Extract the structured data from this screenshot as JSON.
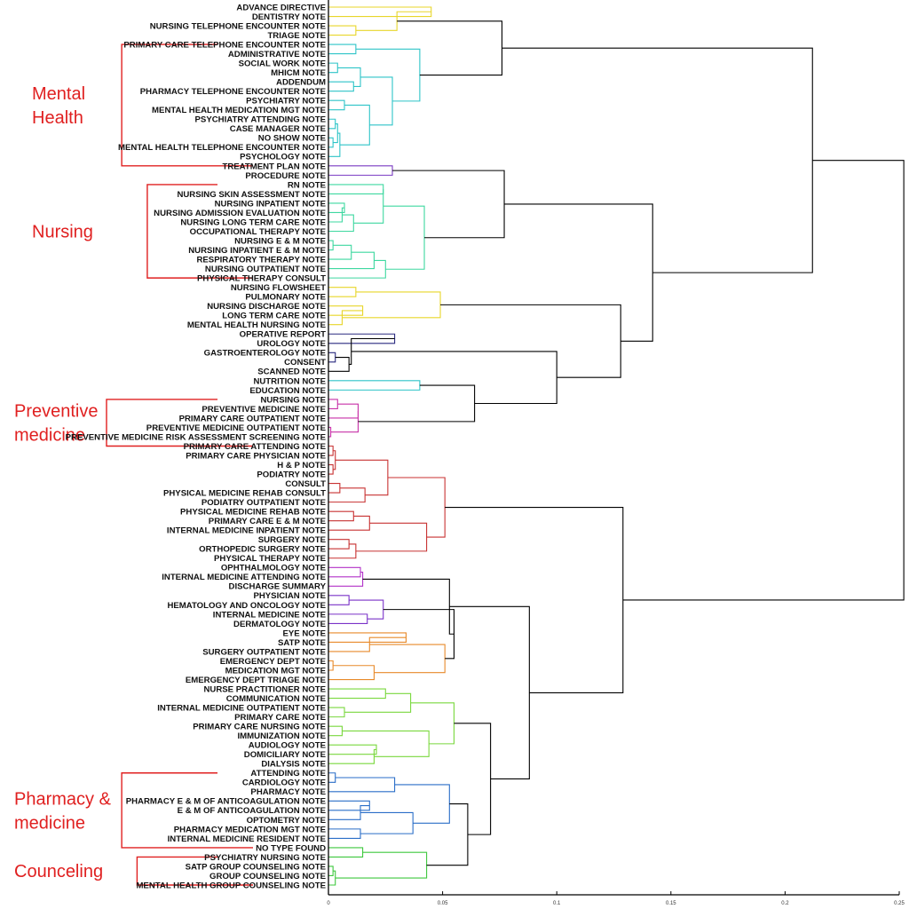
{
  "chart_data": {
    "type": "dendrogram",
    "orientation": "leaves-left, distance-right",
    "xlim": [
      0,
      0.25
    ],
    "xticks": [
      "0",
      "0.05",
      "0.1",
      "0.15",
      "0.2",
      "0.25"
    ],
    "leaves": [
      "ADVANCE DIRECTIVE",
      "DENTISTRY NOTE",
      "NURSING TELEPHONE ENCOUNTER NOTE",
      "TRIAGE NOTE",
      "PRIMARY CARE TELEPHONE ENCOUNTER NOTE",
      "ADMINISTRATIVE NOTE",
      "SOCIAL WORK NOTE",
      "MHICM NOTE",
      "ADDENDUM",
      "PHARMACY TELEPHONE ENCOUNTER NOTE",
      "PSYCHIATRY NOTE",
      "MENTAL HEALTH MEDICATION MGT NOTE",
      "PSYCHIATRY ATTENDING NOTE",
      "CASE MANAGER NOTE",
      "NO SHOW NOTE",
      "MENTAL HEALTH TELEPHONE ENCOUNTER NOTE",
      "PSYCHOLOGY NOTE",
      "TREATMENT PLAN NOTE",
      "PROCEDURE NOTE",
      "RN NOTE",
      "NURSING SKIN ASSESSMENT NOTE",
      "NURSING INPATIENT NOTE",
      "NURSING ADMISSION EVALUATION NOTE",
      "NURSING LONG TERM CARE NOTE",
      "OCCUPATIONAL THERAPY NOTE",
      "NURSING E & M NOTE",
      "NURSING INPATIENT E & M NOTE",
      "RESPIRATORY THERAPY NOTE",
      "NURSING OUTPATIENT NOTE",
      "PHYSICAL THERAPY CONSULT",
      "NURSING FLOWSHEET",
      "PULMONARY NOTE",
      "NURSING DISCHARGE NOTE",
      "LONG TERM CARE NOTE",
      "MENTAL HEALTH NURSING NOTE",
      "OPERATIVE REPORT",
      "UROLOGY NOTE",
      "GASTROENTEROLOGY NOTE",
      "CONSENT",
      "SCANNED NOTE",
      "NUTRITION NOTE",
      "EDUCATION NOTE",
      "NURSING NOTE",
      "PREVENTIVE MEDICINE NOTE",
      "PRIMARY CARE OUTPATIENT NOTE",
      "PREVENTIVE MEDICINE OUTPATIENT NOTE",
      "PREVENTIVE MEDICINE RISK ASSESSMENT SCREENING NOTE",
      "PRIMARY CARE ATTENDING NOTE",
      "PRIMARY CARE PHYSICIAN NOTE",
      "H & P NOTE",
      "PODIATRY NOTE",
      "CONSULT",
      "PHYSICAL MEDICINE REHAB CONSULT",
      "PODIATRY OUTPATIENT NOTE",
      "PHYSICAL MEDICINE REHAB NOTE",
      "PRIMARY CARE E & M NOTE",
      "INTERNAL MEDICINE INPATIENT NOTE",
      "SURGERY NOTE",
      "ORTHOPEDIC SURGERY NOTE",
      "PHYSICAL THERAPY NOTE",
      "OPHTHALMOLOGY NOTE",
      "INTERNAL MEDICINE ATTENDING NOTE",
      "DISCHARGE SUMMARY",
      "PHYSICIAN NOTE",
      "HEMATOLOGY AND ONCOLOGY NOTE",
      "INTERNAL MEDICINE NOTE",
      "DERMATOLOGY NOTE",
      "EYE NOTE",
      "SATP NOTE",
      "SURGERY OUTPATIENT NOTE",
      "EMERGENCY DEPT NOTE",
      "MEDICATION MGT NOTE",
      "EMERGENCY DEPT TRIAGE NOTE",
      "NURSE PRACTITIONER NOTE",
      "COMMUNICATION NOTE",
      "INTERNAL MEDICINE OUTPATIENT NOTE",
      "PRIMARY CARE NOTE",
      "PRIMARY CARE NURSING NOTE",
      "IMMUNIZATION NOTE",
      "AUDIOLOGY NOTE",
      "DOMICILIARY NOTE",
      "DIALYSIS NOTE",
      "ATTENDING NOTE",
      "CARDIOLOGY NOTE",
      "PHARMACY NOTE",
      "PHARMACY E & M OF ANTICOAGULATION NOTE",
      "E & M OF ANTICOAGULATION NOTE",
      "OPTOMETRY NOTE",
      "PHARMACY MEDICATION MGT NOTE",
      "INTERNAL MEDICINE RESIDENT NOTE",
      "NO TYPE FOUND",
      "PSYCHIATRY NURSING NOTE",
      "SATP GROUP COUNSELING NOTE",
      "GROUP COUNSELING NOTE",
      "MENTAL HEALTH GROUP COUNSELING NOTE"
    ],
    "clusters": [
      {
        "leaves": [
          0,
          3
        ],
        "color": "#e8d62a"
      },
      {
        "leaves": [
          4,
          16
        ],
        "color": "#2ec4c8"
      },
      {
        "leaves": [
          17,
          18
        ],
        "color": "#7a3bc2"
      },
      {
        "leaves": [
          19,
          29
        ],
        "color": "#3ed8a0"
      },
      {
        "leaves": [
          30,
          34
        ],
        "color": "#e8d62a"
      },
      {
        "leaves": [
          35,
          38
        ],
        "color": "#2a2a80"
      },
      {
        "leaves": [
          39,
          41
        ],
        "color": "#2ec4c8"
      },
      {
        "leaves": [
          42,
          46
        ],
        "color": "#c832a8"
      },
      {
        "leaves": [
          47,
          59
        ],
        "color": "#c83232"
      },
      {
        "leaves": [
          60,
          62
        ],
        "color": "#b232c8"
      },
      {
        "leaves": [
          63,
          66
        ],
        "color": "#7a32c8"
      },
      {
        "leaves": [
          67,
          72
        ],
        "color": "#e88a2a"
      },
      {
        "leaves": [
          73,
          81
        ],
        "color": "#7ad83e"
      },
      {
        "leaves": [
          82,
          89
        ],
        "color": "#2a6ec8"
      },
      {
        "leaves": [
          90,
          94
        ],
        "color": "#3ec83e"
      }
    ],
    "merges": [
      {
        "id": "y1",
        "c": [
          "L0",
          "L1"
        ],
        "h": 0.045
      },
      {
        "id": "y2",
        "c": [
          "L2",
          "L3"
        ],
        "h": 0.012
      },
      {
        "id": "y3",
        "c": [
          "y1",
          "y2"
        ],
        "h": 0.03
      },
      {
        "id": "c1",
        "c": [
          "L4",
          "L5"
        ],
        "h": 0.012
      },
      {
        "id": "c2",
        "c": [
          "L6",
          "L7"
        ],
        "h": 0.004
      },
      {
        "id": "c3",
        "c": [
          "L8",
          "L9"
        ],
        "h": 0.011
      },
      {
        "id": "c4",
        "c": [
          "c2",
          "c3"
        ],
        "h": 0.014
      },
      {
        "id": "c5",
        "c": [
          "L12",
          "L13"
        ],
        "h": 0.003
      },
      {
        "id": "c6",
        "c": [
          "L14",
          "L15"
        ],
        "h": 0.002
      },
      {
        "id": "c7",
        "c": [
          "c5",
          "c6"
        ],
        "h": 0.004
      },
      {
        "id": "c8",
        "c": [
          "c7",
          "L16"
        ],
        "h": 0.005
      },
      {
        "id": "c9",
        "c": [
          "L10",
          "L11"
        ],
        "h": 0.007
      },
      {
        "id": "c10",
        "c": [
          "c9",
          "c8"
        ],
        "h": 0.018
      },
      {
        "id": "c11",
        "c": [
          "c4",
          "c10"
        ],
        "h": 0.028
      },
      {
        "id": "c12",
        "c": [
          "c1",
          "c11"
        ],
        "h": 0.04
      },
      {
        "id": "A",
        "c": [
          "y3",
          "c12"
        ],
        "h": 0.076
      },
      {
        "id": "p1",
        "c": [
          "L17",
          "L18"
        ],
        "h": 0.028
      },
      {
        "id": "g1",
        "c": [
          "L19",
          "L20"
        ],
        "h": 0.024
      },
      {
        "id": "g2",
        "c": [
          "L21",
          "L22"
        ],
        "h": 0.007
      },
      {
        "id": "g3",
        "c": [
          "g2",
          "L23"
        ],
        "h": 0.006
      },
      {
        "id": "g4",
        "c": [
          "g3",
          "L24"
        ],
        "h": 0.011
      },
      {
        "id": "g5",
        "c": [
          "g1",
          "g4"
        ],
        "h": 0.024
      },
      {
        "id": "g6",
        "c": [
          "L25",
          "L26"
        ],
        "h": 0.002
      },
      {
        "id": "g7",
        "c": [
          "g6",
          "L27"
        ],
        "h": 0.01
      },
      {
        "id": "g8",
        "c": [
          "g7",
          "L28"
        ],
        "h": 0.02
      },
      {
        "id": "g9",
        "c": [
          "g8",
          "L29"
        ],
        "h": 0.025
      },
      {
        "id": "g10",
        "c": [
          "g5",
          "g9"
        ],
        "h": 0.042
      },
      {
        "id": "B",
        "c": [
          "p1",
          "g10"
        ],
        "h": 0.077
      },
      {
        "id": "y4",
        "c": [
          "L30",
          "L31"
        ],
        "h": 0.012
      },
      {
        "id": "y5",
        "c": [
          "L32",
          "L33"
        ],
        "h": 0.015
      },
      {
        "id": "y6",
        "c": [
          "y5",
          "L34"
        ],
        "h": 0.006
      },
      {
        "id": "y7",
        "c": [
          "y4",
          "y6"
        ],
        "h": 0.049
      },
      {
        "id": "n1",
        "c": [
          "L35",
          "L36"
        ],
        "h": 0.029
      },
      {
        "id": "n2",
        "c": [
          "L37",
          "L38"
        ],
        "h": 0.003
      },
      {
        "id": "n3",
        "c": [
          "n2",
          "L39"
        ],
        "h": 0.009
      },
      {
        "id": "n4",
        "c": [
          "n1",
          "n3"
        ],
        "h": 0.01
      },
      {
        "id": "t1",
        "c": [
          "L40",
          "L41"
        ],
        "h": 0.04
      },
      {
        "id": "m1",
        "c": [
          "L42",
          "L43"
        ],
        "h": 0.004
      },
      {
        "id": "m2",
        "c": [
          "m1",
          "L44"
        ],
        "h": 0.013
      },
      {
        "id": "m3",
        "c": [
          "L45",
          "L46"
        ],
        "h": 0.001
      },
      {
        "id": "m4",
        "c": [
          "m2",
          "m3"
        ],
        "h": 0.013
      },
      {
        "id": "x1",
        "c": [
          "t1",
          "m4"
        ],
        "h": 0.064
      },
      {
        "id": "x2",
        "c": [
          "n4",
          "x1"
        ],
        "h": 0.1
      },
      {
        "id": "x3",
        "c": [
          "y7",
          "x2"
        ],
        "h": 0.128
      },
      {
        "id": "C",
        "c": [
          "B",
          "x3"
        ],
        "h": 0.142
      },
      {
        "id": "D",
        "c": [
          "A",
          "C"
        ],
        "h": 0.212
      },
      {
        "id": "r1",
        "c": [
          "L47",
          "L48"
        ],
        "h": 0.002
      },
      {
        "id": "r2",
        "c": [
          "L49",
          "L50"
        ],
        "h": 0.002
      },
      {
        "id": "r3",
        "c": [
          "r1",
          "r2"
        ],
        "h": 0.003
      },
      {
        "id": "r4",
        "c": [
          "L51",
          "L52"
        ],
        "h": 0.005
      },
      {
        "id": "r5",
        "c": [
          "r4",
          "L53"
        ],
        "h": 0.016
      },
      {
        "id": "r6",
        "c": [
          "r3",
          "r5"
        ],
        "h": 0.026
      },
      {
        "id": "r7",
        "c": [
          "L54",
          "L55"
        ],
        "h": 0.011
      },
      {
        "id": "r8",
        "c": [
          "r7",
          "L56"
        ],
        "h": 0.018
      },
      {
        "id": "r9",
        "c": [
          "L57",
          "L58"
        ],
        "h": 0.009
      },
      {
        "id": "r10",
        "c": [
          "r9",
          "L59"
        ],
        "h": 0.012
      },
      {
        "id": "r11",
        "c": [
          "r8",
          "r10"
        ],
        "h": 0.043
      },
      {
        "id": "R",
        "c": [
          "r6",
          "r11"
        ],
        "h": 0.051
      },
      {
        "id": "p2",
        "c": [
          "L60",
          "L61"
        ],
        "h": 0.014
      },
      {
        "id": "p3",
        "c": [
          "p2",
          "L62"
        ],
        "h": 0.015
      },
      {
        "id": "v1",
        "c": [
          "L63",
          "L64"
        ],
        "h": 0.009
      },
      {
        "id": "v2",
        "c": [
          "L65",
          "L66"
        ],
        "h": 0.017
      },
      {
        "id": "v3",
        "c": [
          "v1",
          "v2"
        ],
        "h": 0.024
      },
      {
        "id": "o1",
        "c": [
          "L67",
          "L68"
        ],
        "h": 0.034
      },
      {
        "id": "o2",
        "c": [
          "o1",
          "L69"
        ],
        "h": 0.018
      },
      {
        "id": "o3",
        "c": [
          "L70",
          "L71"
        ],
        "h": 0.002
      },
      {
        "id": "o4",
        "c": [
          "o3",
          "L72"
        ],
        "h": 0.02
      },
      {
        "id": "o5",
        "c": [
          "o2",
          "o4"
        ],
        "h": 0.051
      },
      {
        "id": "q1",
        "c": [
          "v3",
          "o5"
        ],
        "h": 0.055
      },
      {
        "id": "q2",
        "c": [
          "p3",
          "q1"
        ],
        "h": 0.053
      },
      {
        "id": "k1",
        "c": [
          "L73",
          "L74"
        ],
        "h": 0.025
      },
      {
        "id": "k2",
        "c": [
          "L75",
          "L76"
        ],
        "h": 0.007
      },
      {
        "id": "k3",
        "c": [
          "k1",
          "k2"
        ],
        "h": 0.036
      },
      {
        "id": "k4",
        "c": [
          "L77",
          "L78"
        ],
        "h": 0.006
      },
      {
        "id": "k5",
        "c": [
          "L79",
          "L80"
        ],
        "h": 0.021
      },
      {
        "id": "k6",
        "c": [
          "k5",
          "L81"
        ],
        "h": 0.02
      },
      {
        "id": "k7",
        "c": [
          "k4",
          "k6"
        ],
        "h": 0.044
      },
      {
        "id": "K",
        "c": [
          "k3",
          "k7"
        ],
        "h": 0.055
      },
      {
        "id": "b1",
        "c": [
          "L82",
          "L83"
        ],
        "h": 0.003
      },
      {
        "id": "b2",
        "c": [
          "b1",
          "L84"
        ],
        "h": 0.029
      },
      {
        "id": "b3",
        "c": [
          "L85",
          "L86"
        ],
        "h": 0.018
      },
      {
        "id": "b4",
        "c": [
          "b3",
          "L87"
        ],
        "h": 0.014
      },
      {
        "id": "b5",
        "c": [
          "L88",
          "L89"
        ],
        "h": 0.014
      },
      {
        "id": "b6",
        "c": [
          "b4",
          "b5"
        ],
        "h": 0.037
      },
      {
        "id": "b7",
        "c": [
          "b2",
          "b6"
        ],
        "h": 0.053
      },
      {
        "id": "u1",
        "c": [
          "L90",
          "L91"
        ],
        "h": 0.015
      },
      {
        "id": "u2",
        "c": [
          "L92",
          "L93"
        ],
        "h": 0.002
      },
      {
        "id": "u3",
        "c": [
          "u2",
          "L94"
        ],
        "h": 0.003
      },
      {
        "id": "u4",
        "c": [
          "u1",
          "u3"
        ],
        "h": 0.043
      },
      {
        "id": "u5",
        "c": [
          "b7",
          "u4"
        ],
        "h": 0.061
      },
      {
        "id": "u6",
        "c": [
          "K",
          "u5"
        ],
        "h": 0.071
      },
      {
        "id": "Q",
        "c": [
          "q2",
          "u6"
        ],
        "h": 0.088
      },
      {
        "id": "E",
        "c": [
          "R",
          "Q"
        ],
        "h": 0.129
      },
      {
        "id": "root",
        "c": [
          "D",
          "E"
        ],
        "h": 0.252
      }
    ],
    "annotation_groups": [
      {
        "label_lines": [
          "Mental",
          "Health"
        ],
        "from_leaf": 4,
        "to_leaf": 17,
        "color": "#e02020"
      },
      {
        "label_lines": [
          "Nursing"
        ],
        "from_leaf": 19,
        "to_leaf": 29,
        "color": "#e02020"
      },
      {
        "label_lines": [
          "Preventive",
          "medicine"
        ],
        "from_leaf": 42,
        "to_leaf": 47,
        "color": "#e02020"
      },
      {
        "label_lines": [
          "Pharmacy &",
          "medicine"
        ],
        "from_leaf": 82,
        "to_leaf": 90,
        "color": "#e02020"
      },
      {
        "label_lines": [
          "Counceling"
        ],
        "from_leaf": 91,
        "to_leaf": 94,
        "color": "#e02020"
      }
    ]
  }
}
